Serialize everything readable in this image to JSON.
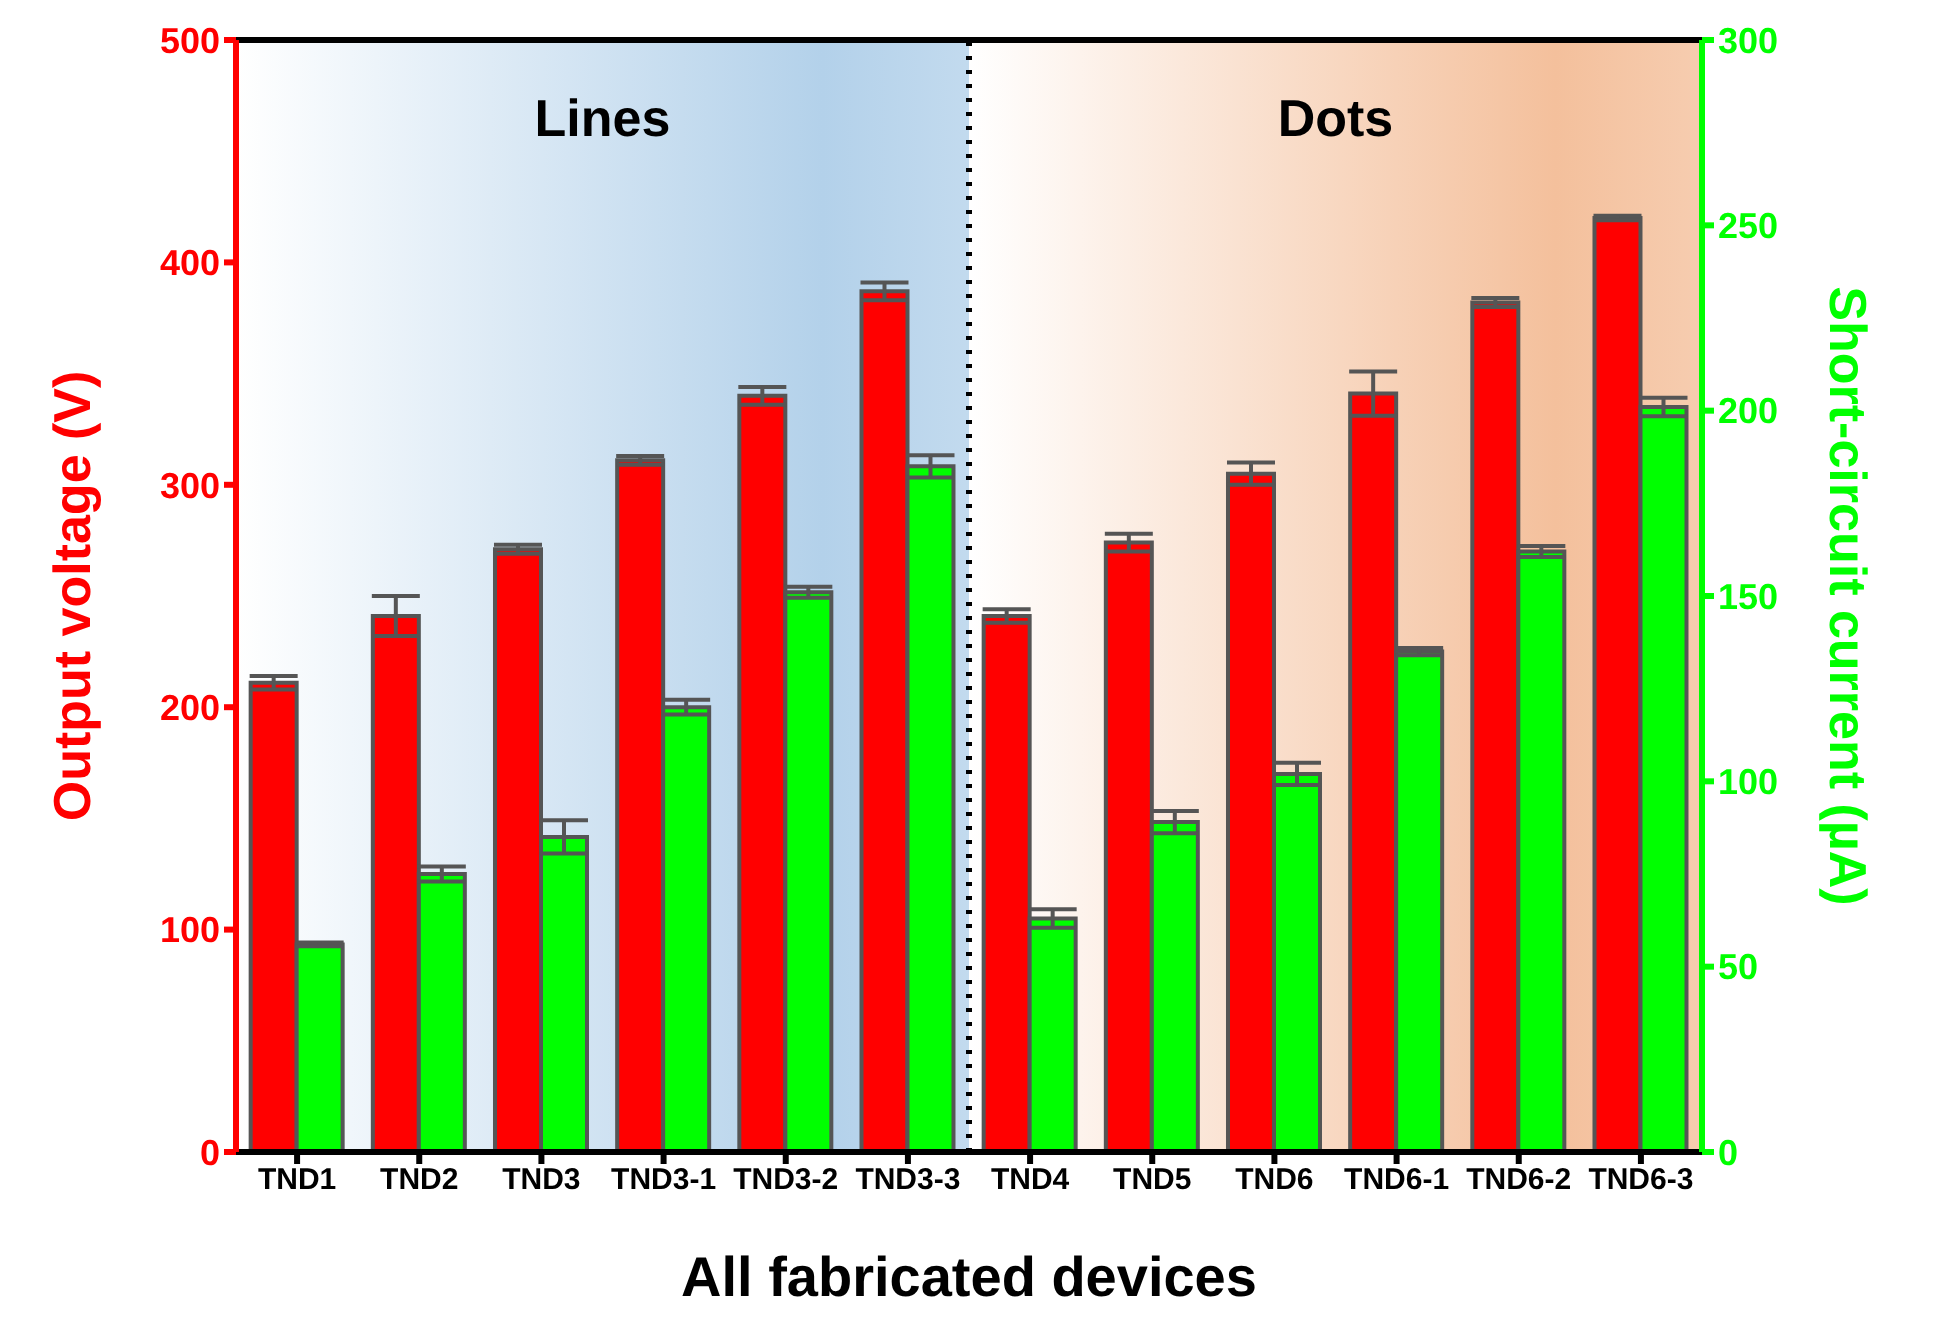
{
  "chart_data": {
    "type": "bar",
    "xlabel": "All fabricated devices",
    "ylabel": "Output voltage (V)",
    "y2label": "Short-circuit current (µA)",
    "categories": [
      "TND1",
      "TND2",
      "TND3",
      "TND3-1",
      "TND3-2",
      "TND3-3",
      "TND4",
      "TND5",
      "TND6",
      "TND6-1",
      "TND6-2",
      "TND6-3"
    ],
    "series": [
      {
        "color": "#ff0000",
        "values": [
          211,
          241,
          271,
          311,
          340,
          387,
          241,
          274,
          305,
          341,
          382,
          420
        ],
        "errors": [
          3,
          9,
          2,
          2,
          4,
          4,
          3,
          4,
          5,
          10,
          2,
          1
        ]
      },
      {
        "color": "#00ff00",
        "axis": "y2",
        "values": [
          56,
          75,
          85,
          120,
          151,
          185,
          63,
          89,
          102,
          135,
          162,
          201
        ],
        "errors": [
          0.5,
          2,
          4.5,
          2,
          1.5,
          3,
          2.5,
          3,
          3,
          1,
          1.5,
          2.5
        ]
      }
    ],
    "ylim": [
      0,
      500
    ],
    "yticks": [
      0,
      100,
      200,
      300,
      400,
      500
    ],
    "y2lim": [
      0,
      300
    ],
    "y2ticks": [
      0,
      50,
      100,
      150,
      200,
      250,
      300
    ],
    "bands": [
      {
        "axis": "x",
        "from": "TND1",
        "to": "TND3-3",
        "label": "Lines",
        "color": "#b3d1ea"
      },
      {
        "axis": "x",
        "from": "TND4",
        "to": "TND6-3",
        "label": "Dots",
        "color": "#f4c09c"
      }
    ],
    "grid": false
  }
}
